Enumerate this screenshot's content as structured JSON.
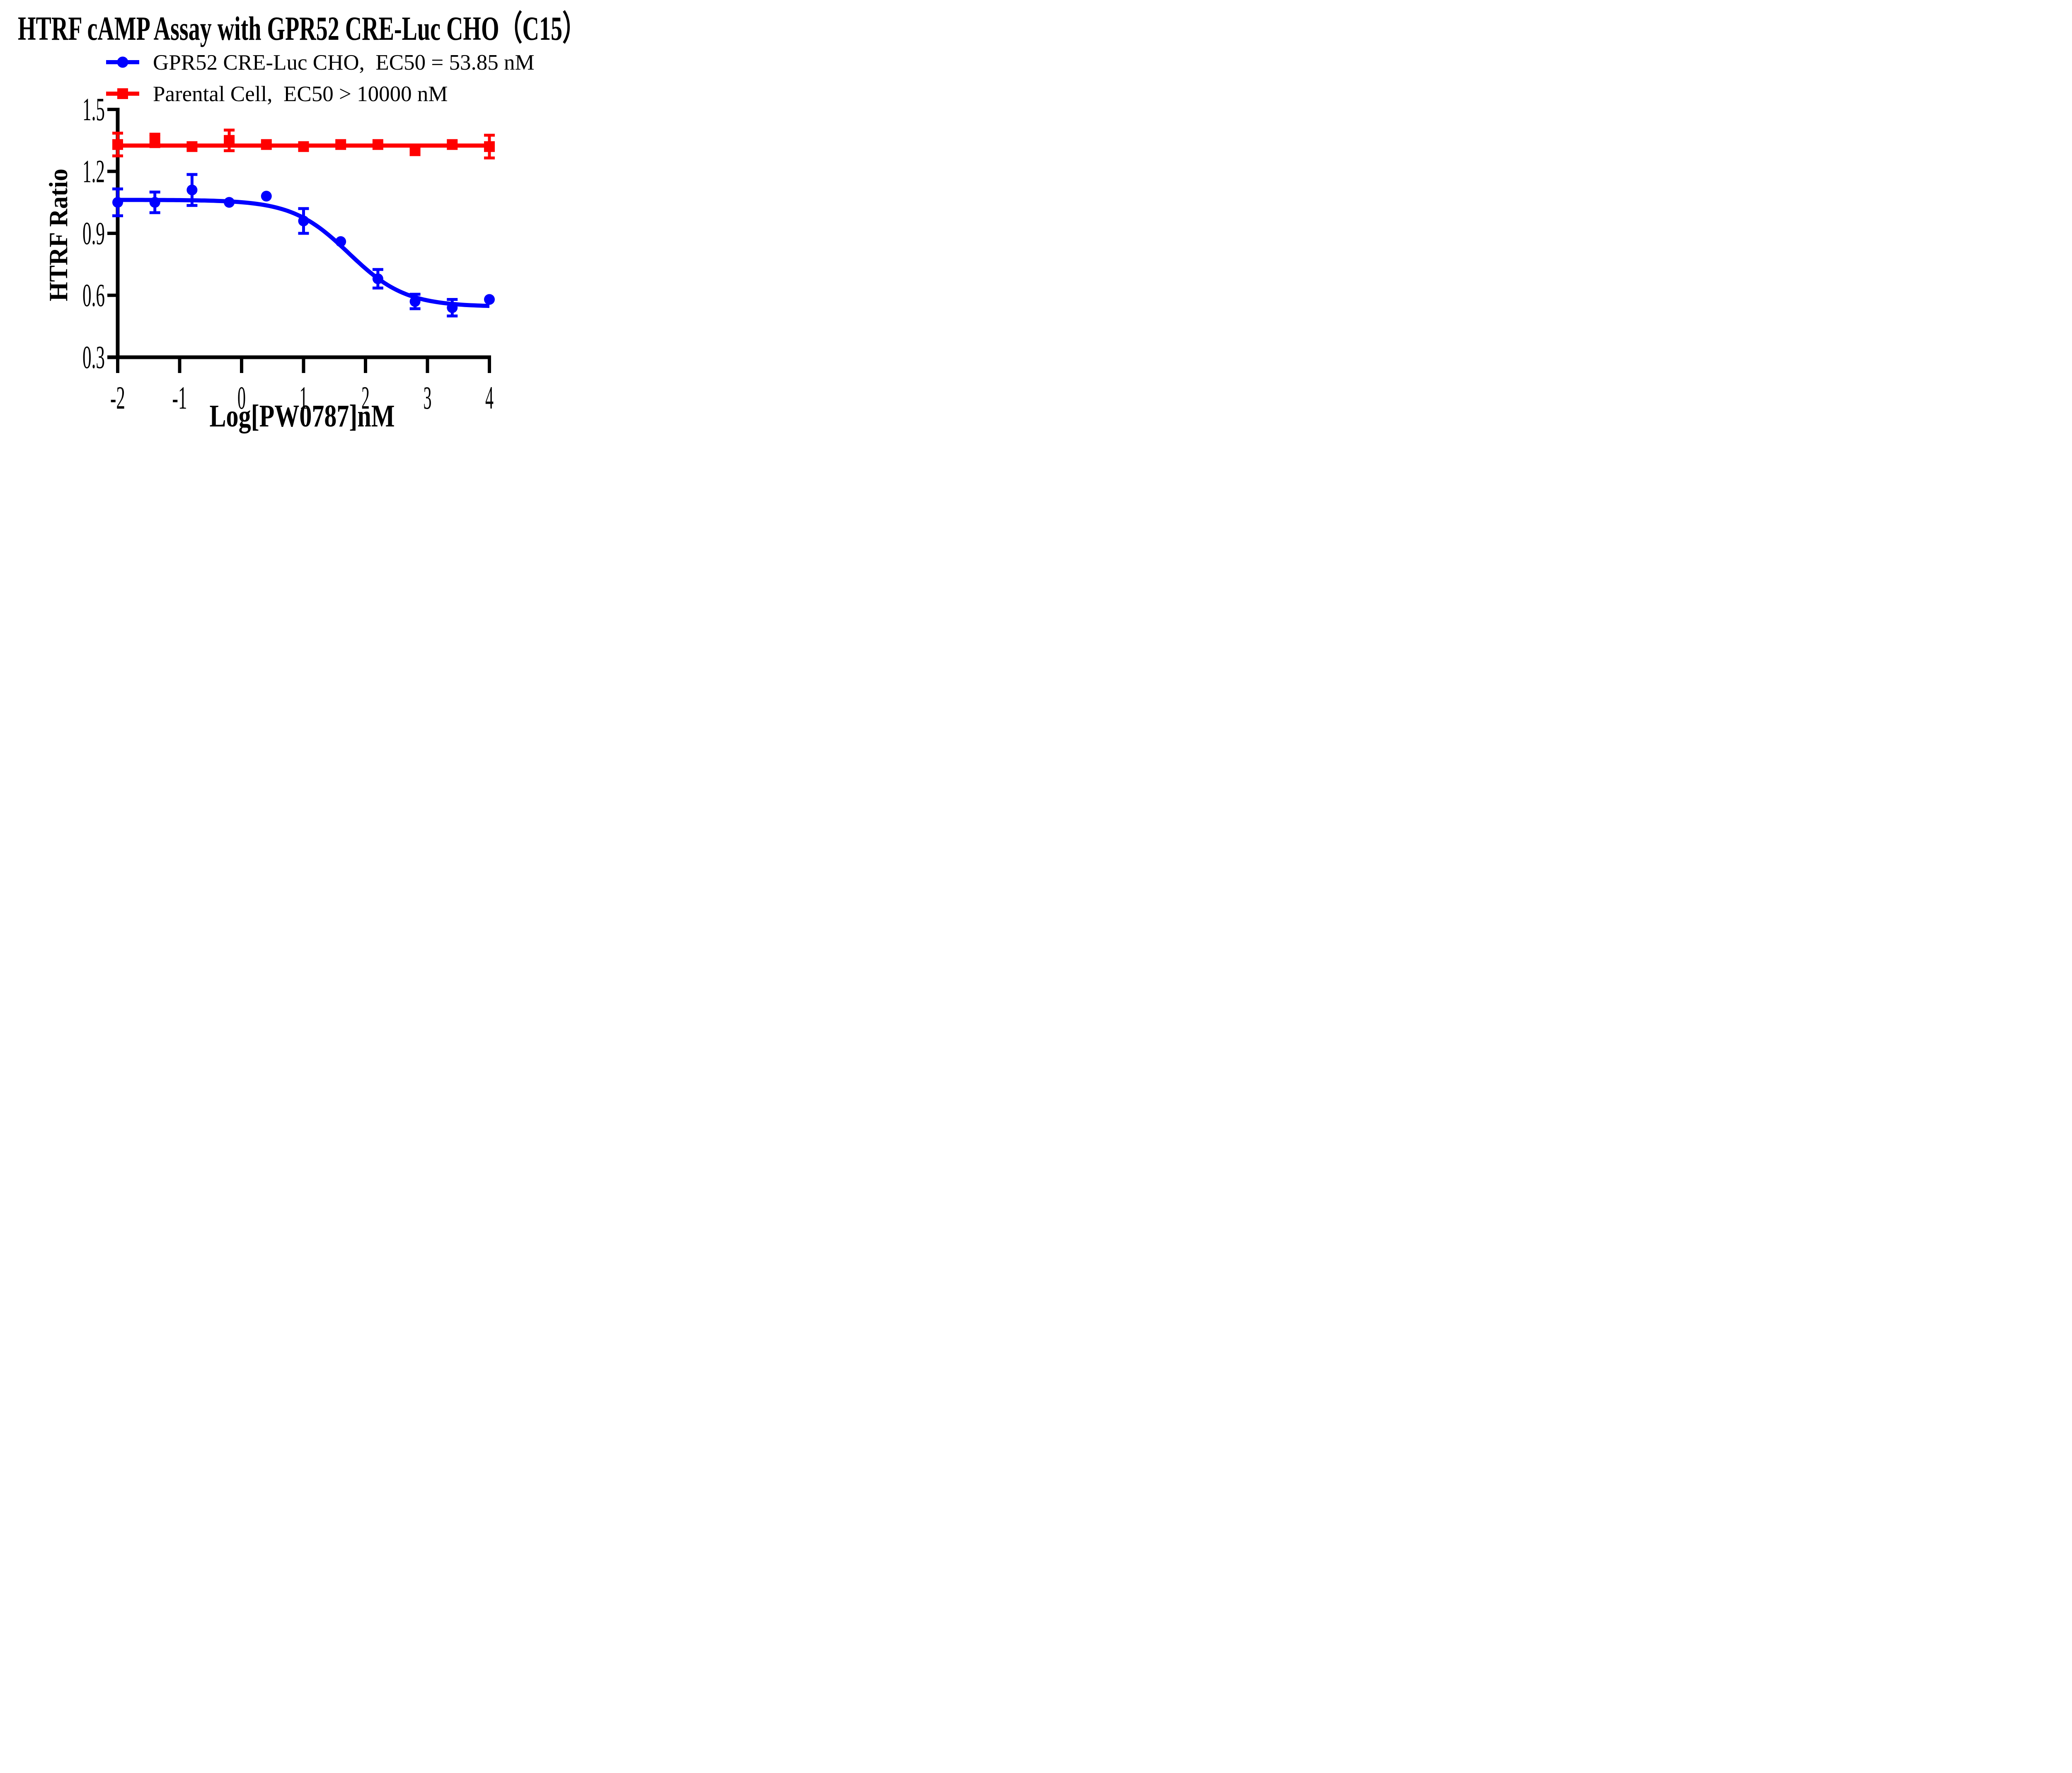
{
  "figure": {
    "background_color": "#ffffff",
    "text_color": "#000000"
  },
  "chart_data": {
    "type": "line",
    "title": "HTRF cAMP Assay with GPR52 CRE-Luc CHO（C15）",
    "xlabel": "Log[PW0787]nM",
    "ylabel": "HTRF Ratio",
    "xlim": [
      -2,
      4
    ],
    "ylim": [
      0.3,
      1.5
    ],
    "grid": false,
    "legend_position": "top-left-above-plot",
    "x_ticks": [
      -2,
      -1,
      0,
      1,
      2,
      3,
      4
    ],
    "x_tick_labels": [
      "-2",
      "-1",
      "0",
      "1",
      "2",
      "3",
      "4"
    ],
    "y_ticks": [
      1.5,
      1.2,
      0.9,
      0.6,
      0.3
    ],
    "y_tick_labels": [
      "1.5",
      "1.2",
      "0.9",
      "0.6",
      "0.3"
    ],
    "x": [
      -2.0,
      -1.4,
      -0.8,
      -0.2,
      0.4,
      1.0,
      1.6,
      2.2,
      2.8,
      3.4,
      4.0
    ],
    "series": [
      {
        "name": "GPR52 CRE-Luc CHO",
        "legend_label": "GPR52 CRE-Luc CHO,  EC50 = 53.85 nM",
        "ec50_nM": 53.85,
        "marker": "circle",
        "color": "#0000ff",
        "values": [
          1.05,
          1.05,
          1.11,
          1.05,
          1.08,
          0.96,
          0.86,
          0.68,
          0.57,
          0.54,
          0.58
        ],
        "errors": [
          0.065,
          0.05,
          0.075,
          0,
          0,
          0.06,
          0,
          0.045,
          0.035,
          0.04,
          0
        ],
        "fit": {
          "type": "4PL",
          "top": 1.062,
          "bottom": 0.545,
          "logEC50": 1.731,
          "hill": 0.95
        }
      },
      {
        "name": "Parental Cell",
        "legend_label": "Parental Cell,  EC50 > 10000 nM",
        "ec50_nM": ">10000",
        "marker": "square",
        "color": "#ff0000",
        "values": [
          1.33,
          1.35,
          1.32,
          1.35,
          1.33,
          1.32,
          1.33,
          1.33,
          1.3,
          1.33,
          1.32
        ],
        "errors": [
          0.055,
          0.03,
          0,
          0.05,
          0,
          0,
          0,
          0,
          0,
          0,
          0.055
        ],
        "fit": {
          "type": "constant",
          "value": 1.325
        }
      }
    ]
  }
}
